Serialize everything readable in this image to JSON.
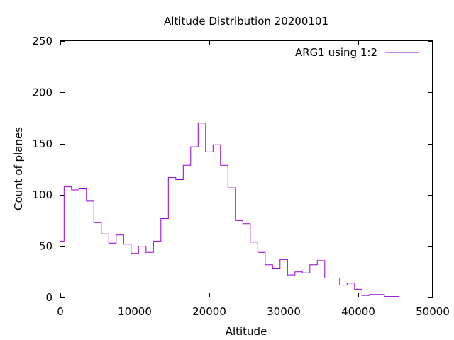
{
  "chart_data": {
    "type": "line",
    "style": "steps",
    "title": "Altitude Distribution 20200101",
    "xlabel": "Altitude",
    "ylabel": "Count of planes",
    "xlim": [
      0,
      50000
    ],
    "ylim": [
      0,
      250
    ],
    "xticks": [
      0,
      10000,
      20000,
      30000,
      40000,
      50000
    ],
    "yticks": [
      0,
      50,
      100,
      150,
      200,
      250
    ],
    "grid": false,
    "legend_position": "top-right",
    "colors": {
      "series": "#9400d3",
      "frame": "#000000"
    },
    "series": [
      {
        "name": "ARG1 using 1:2",
        "x": [
          0,
          500,
          1500,
          2500,
          3500,
          4500,
          5500,
          6500,
          7500,
          8500,
          9500,
          10500,
          11500,
          12500,
          13500,
          14500,
          15500,
          16500,
          17500,
          18500,
          19500,
          20500,
          21500,
          22500,
          23500,
          24500,
          25500,
          26500,
          27500,
          28500,
          29500,
          30500,
          31500,
          32500,
          33500,
          34500,
          35500,
          36500,
          37500,
          38500,
          39500,
          40500,
          41500,
          42500,
          43500,
          44500,
          45500
        ],
        "y": [
          55,
          108,
          105,
          106,
          94,
          73,
          62,
          53,
          61,
          52,
          43,
          50,
          44,
          55,
          77,
          117,
          115,
          129,
          147,
          170,
          142,
          149,
          129,
          107,
          75,
          72,
          54,
          44,
          32,
          28,
          37,
          22,
          25,
          24,
          32,
          36,
          19,
          19,
          12,
          14,
          8,
          2,
          3,
          3,
          1,
          1,
          0
        ]
      }
    ]
  }
}
